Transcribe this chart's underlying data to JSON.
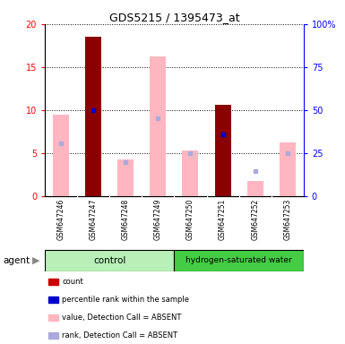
{
  "title": "GDS5215 / 1395473_at",
  "samples": [
    "GSM647246",
    "GSM647247",
    "GSM647248",
    "GSM647249",
    "GSM647250",
    "GSM647251",
    "GSM647252",
    "GSM647253"
  ],
  "red_bars": [
    null,
    18.5,
    null,
    null,
    null,
    10.6,
    null,
    null
  ],
  "blue_squares": [
    null,
    10.0,
    null,
    null,
    null,
    7.2,
    null,
    null
  ],
  "pink_bars": [
    9.5,
    null,
    4.3,
    16.2,
    5.3,
    null,
    1.8,
    6.2
  ],
  "lavender_squares": [
    6.1,
    null,
    3.9,
    9.0,
    5.0,
    null,
    2.9,
    5.0
  ],
  "ylim_left": [
    0,
    20
  ],
  "ylim_right": [
    0,
    100
  ],
  "yticks_left": [
    0,
    5,
    10,
    15,
    20
  ],
  "yticks_right": [
    0,
    25,
    50,
    75,
    100
  ],
  "ytick_labels_right": [
    "0",
    "25",
    "50",
    "75",
    "100%"
  ],
  "red_color": "#8b0000",
  "blue_color": "#0000cd",
  "pink_color": "#ffb6c1",
  "lavender_color": "#aaaadd",
  "bar_width": 0.5,
  "control_color": "#b8f0b8",
  "hw_color": "#44cc44",
  "gray_color": "#cccccc",
  "legend_items": [
    {
      "color": "#cc0000",
      "label": "count"
    },
    {
      "color": "#0000cc",
      "label": "percentile rank within the sample"
    },
    {
      "color": "#ffb6c1",
      "label": "value, Detection Call = ABSENT"
    },
    {
      "color": "#aaaadd",
      "label": "rank, Detection Call = ABSENT"
    }
  ]
}
